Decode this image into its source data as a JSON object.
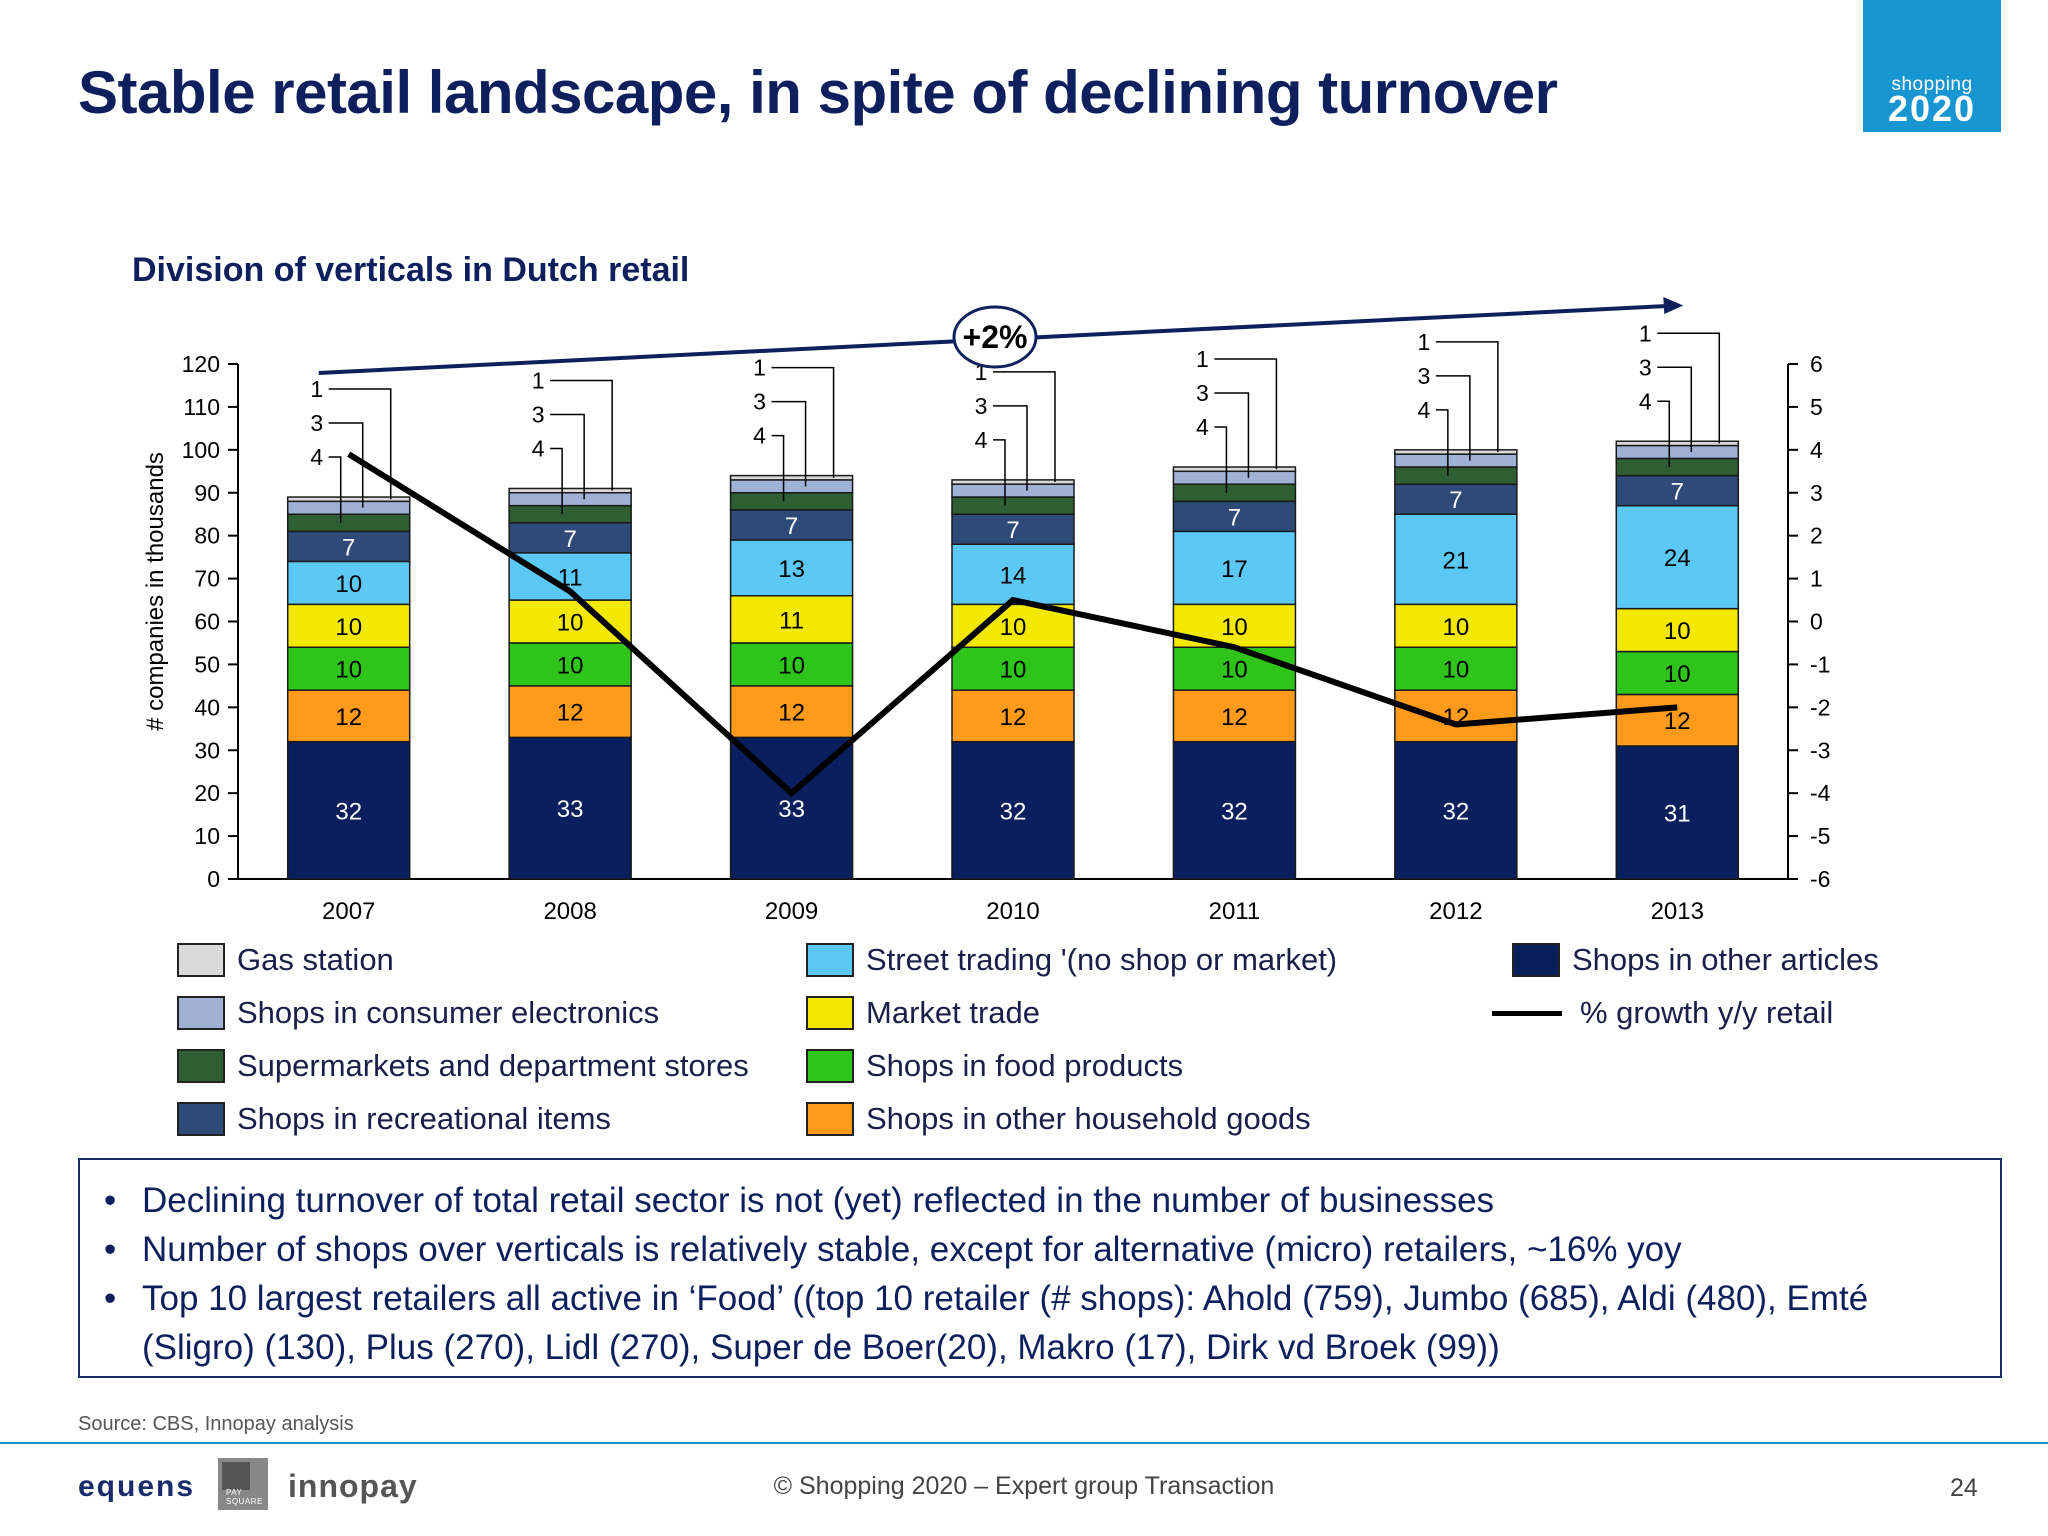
{
  "header": {
    "title": "Stable retail landscape, in spite of declining turnover",
    "logo_line1": "shopping",
    "logo_line2": "2020"
  },
  "chart_data": {
    "type": "bar",
    "stacked": true,
    "title": "Division of verticals in Dutch retail",
    "ylabel": "# companies in thousands",
    "ylim": [
      0,
      120
    ],
    "yticks": [
      0,
      10,
      20,
      30,
      40,
      50,
      60,
      70,
      80,
      90,
      100,
      110,
      120
    ],
    "y2lim": [
      -6,
      6
    ],
    "y2ticks": [
      -6,
      -5,
      -4,
      -3,
      -2,
      -1,
      0,
      1,
      2,
      3,
      4,
      5,
      6
    ],
    "categories": [
      "2007",
      "2008",
      "2009",
      "2010",
      "2011",
      "2012",
      "2013"
    ],
    "series": [
      {
        "name": "Shops in other articles",
        "color": "#0a1f5e",
        "values": [
          32,
          33,
          33,
          32,
          32,
          32,
          31
        ]
      },
      {
        "name": "Shops in other household goods",
        "color": "#ff9a1a",
        "values": [
          12,
          12,
          12,
          12,
          12,
          12,
          12
        ]
      },
      {
        "name": "Shops in food products",
        "color": "#2ec41a",
        "values": [
          10,
          10,
          10,
          10,
          10,
          10,
          10
        ]
      },
      {
        "name": "Market trade",
        "color": "#f2e800",
        "values": [
          10,
          10,
          11,
          10,
          10,
          10,
          10
        ]
      },
      {
        "name": "Street trading '(no shop or market)",
        "color": "#5bc8f5",
        "values": [
          10,
          11,
          13,
          14,
          17,
          21,
          24
        ]
      },
      {
        "name": "Shops in recreational items",
        "color": "#2e4a78",
        "values": [
          7,
          7,
          7,
          7,
          7,
          7,
          7
        ]
      },
      {
        "name": "Supermarkets and department stores",
        "color": "#2f5e32",
        "values": [
          4,
          4,
          4,
          4,
          4,
          4,
          4
        ]
      },
      {
        "name": "Shops in consumer electronics",
        "color": "#9fb2d6",
        "values": [
          3,
          3,
          3,
          3,
          3,
          3,
          3
        ]
      },
      {
        "name": "Gas station",
        "color": "#d9d9d9",
        "values": [
          1,
          1,
          1,
          1,
          1,
          1,
          1
        ]
      }
    ],
    "line": {
      "name": "% growth y/y retail",
      "color": "#000000",
      "axis": "secondary",
      "values": [
        3.9,
        0.7,
        -4.0,
        0.5,
        -0.6,
        -2.4,
        -2.0
      ]
    },
    "annotation": "+2%",
    "legend": [
      {
        "label": "Gas station",
        "color": "#d9d9d9"
      },
      {
        "label": "Shops in consumer electronics",
        "color": "#9fb2d6"
      },
      {
        "label": "Supermarkets and department stores",
        "color": "#2f5e32"
      },
      {
        "label": "Shops in recreational items",
        "color": "#2e4a78"
      },
      {
        "label": "Street trading '(no shop or market)",
        "color": "#5bc8f5"
      },
      {
        "label": "Market trade",
        "color": "#f2e800"
      },
      {
        "label": "Shops in food products",
        "color": "#2ec41a"
      },
      {
        "label": "Shops in other household goods",
        "color": "#ff9a1a"
      },
      {
        "label": "Shops in other articles",
        "color": "#0a1f5e"
      },
      {
        "label": "% growth y/y retail",
        "color": "#000000",
        "line": true
      }
    ]
  },
  "bullets": [
    "Declining turnover of total retail sector is not (yet) reflected in the number of businesses",
    "Number of shops over verticals is relatively stable, except for alternative (micro) retailers, ~16% yoy",
    "Top 10 largest retailers all active in ‘Food’ ((top 10 retailer (# shops): Ahold (759), Jumbo (685), Aldi (480), Emté (Sligro) (130), Plus (270), Lidl (270), Super de Boer(20), Makro (17), Dirk vd Broek (99))"
  ],
  "source": "Source: CBS, Innopay analysis",
  "footer": {
    "brand1": "equens",
    "brand_box": "PAY SQUARE",
    "brand2": "innopay",
    "text": "© Shopping 2020 – Expert group Transaction",
    "page": "24"
  }
}
